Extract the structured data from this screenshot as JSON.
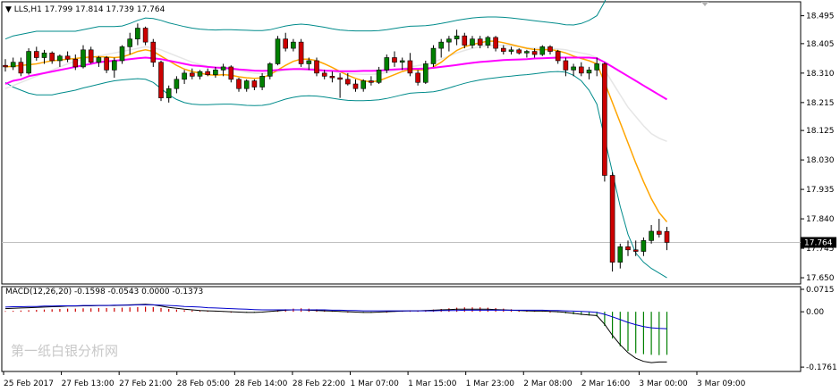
{
  "chart_data": {
    "type": "candlestick",
    "symbol": "LLS,H1",
    "ohlc_header": {
      "open": 17.799,
      "high": 17.814,
      "low": 17.739,
      "close": 17.764
    },
    "ohlc_text": "17.799 17.814 17.739 17.764",
    "price_axis": {
      "range": [
        17.63,
        18.54
      ],
      "ticks": [
        "18.495",
        "18.405",
        "18.310",
        "18.215",
        "18.125",
        "18.030",
        "17.935",
        "17.840",
        "17.745",
        "17.650"
      ],
      "current_price_label": "17.764",
      "current_price": 17.764
    },
    "time_axis": {
      "ticks": [
        "25 Feb 2017",
        "27 Feb 13:00",
        "27 Feb 21:00",
        "28 Feb 05:00",
        "28 Feb 14:00",
        "28 Feb 22:00",
        "1 Mar 07:00",
        "1 Mar 15:00",
        "1 Mar 23:00",
        "2 Mar 08:00",
        "2 Mar 16:00",
        "3 Mar 00:00",
        "3 Mar 09:00"
      ]
    },
    "candles": [
      [
        18.335,
        18.355,
        18.315,
        18.33
      ],
      [
        18.33,
        18.36,
        18.32,
        18.345
      ],
      [
        18.345,
        18.36,
        18.3,
        18.31
      ],
      [
        18.31,
        18.39,
        18.305,
        18.38
      ],
      [
        18.38,
        18.395,
        18.35,
        18.36
      ],
      [
        18.36,
        18.385,
        18.34,
        18.375
      ],
      [
        18.375,
        18.38,
        18.34,
        18.35
      ],
      [
        18.35,
        18.37,
        18.33,
        18.365
      ],
      [
        18.365,
        18.38,
        18.345,
        18.355
      ],
      [
        18.355,
        18.37,
        18.32,
        18.33
      ],
      [
        18.33,
        18.4,
        18.325,
        18.385
      ],
      [
        18.385,
        18.395,
        18.34,
        18.345
      ],
      [
        18.345,
        18.365,
        18.33,
        18.36
      ],
      [
        18.36,
        18.365,
        18.31,
        18.32
      ],
      [
        18.32,
        18.36,
        18.295,
        18.35
      ],
      [
        18.35,
        18.4,
        18.34,
        18.395
      ],
      [
        18.395,
        18.44,
        18.37,
        18.42
      ],
      [
        18.42,
        18.47,
        18.4,
        18.455
      ],
      [
        18.455,
        18.46,
        18.4,
        18.41
      ],
      [
        18.41,
        18.42,
        18.33,
        18.345
      ],
      [
        18.345,
        18.35,
        18.22,
        18.23
      ],
      [
        18.23,
        18.27,
        18.215,
        18.26
      ],
      [
        18.26,
        18.3,
        18.245,
        18.29
      ],
      [
        18.29,
        18.32,
        18.275,
        18.31
      ],
      [
        18.31,
        18.325,
        18.29,
        18.3
      ],
      [
        18.3,
        18.32,
        18.29,
        18.315
      ],
      [
        18.315,
        18.325,
        18.3,
        18.305
      ],
      [
        18.305,
        18.33,
        18.295,
        18.32
      ],
      [
        18.32,
        18.34,
        18.3,
        18.33
      ],
      [
        18.33,
        18.335,
        18.28,
        18.29
      ],
      [
        18.29,
        18.295,
        18.25,
        18.26
      ],
      [
        18.26,
        18.29,
        18.25,
        18.285
      ],
      [
        18.285,
        18.29,
        18.255,
        18.265
      ],
      [
        18.265,
        18.31,
        18.255,
        18.3
      ],
      [
        18.3,
        18.345,
        18.29,
        18.34
      ],
      [
        18.34,
        18.43,
        18.335,
        18.42
      ],
      [
        18.42,
        18.44,
        18.38,
        18.39
      ],
      [
        18.39,
        18.42,
        18.38,
        18.41
      ],
      [
        18.41,
        18.42,
        18.33,
        18.34
      ],
      [
        18.34,
        18.36,
        18.32,
        18.35
      ],
      [
        18.35,
        18.36,
        18.3,
        18.31
      ],
      [
        18.31,
        18.32,
        18.29,
        18.3
      ],
      [
        18.3,
        18.315,
        18.28,
        18.295
      ],
      [
        18.295,
        18.31,
        18.23,
        18.29
      ],
      [
        18.29,
        18.31,
        18.27,
        18.275
      ],
      [
        18.275,
        18.29,
        18.25,
        18.26
      ],
      [
        18.26,
        18.29,
        18.25,
        18.285
      ],
      [
        18.285,
        18.3,
        18.27,
        18.28
      ],
      [
        18.28,
        18.33,
        18.275,
        18.32
      ],
      [
        18.32,
        18.37,
        18.31,
        18.36
      ],
      [
        18.36,
        18.38,
        18.33,
        18.345
      ],
      [
        18.345,
        18.36,
        18.32,
        18.35
      ],
      [
        18.35,
        18.375,
        18.3,
        18.31
      ],
      [
        18.31,
        18.32,
        18.27,
        18.28
      ],
      [
        18.28,
        18.35,
        18.275,
        18.34
      ],
      [
        18.34,
        18.4,
        18.33,
        18.39
      ],
      [
        18.39,
        18.42,
        18.36,
        18.41
      ],
      [
        18.41,
        18.43,
        18.38,
        18.42
      ],
      [
        18.42,
        18.45,
        18.4,
        18.43
      ],
      [
        18.43,
        18.44,
        18.39,
        18.4
      ],
      [
        18.4,
        18.43,
        18.39,
        18.42
      ],
      [
        18.42,
        18.43,
        18.39,
        18.4
      ],
      [
        18.4,
        18.43,
        18.39,
        18.425
      ],
      [
        18.425,
        18.43,
        18.38,
        18.39
      ],
      [
        18.39,
        18.4,
        18.37,
        18.38
      ],
      [
        18.38,
        18.395,
        18.37,
        18.385
      ],
      [
        18.385,
        18.39,
        18.37,
        18.375
      ],
      [
        18.375,
        18.385,
        18.36,
        18.38
      ],
      [
        18.38,
        18.39,
        18.36,
        18.37
      ],
      [
        18.37,
        18.4,
        18.365,
        18.395
      ],
      [
        18.395,
        18.4,
        18.37,
        18.38
      ],
      [
        18.38,
        18.385,
        18.34,
        18.35
      ],
      [
        18.35,
        18.36,
        18.3,
        18.32
      ],
      [
        18.32,
        18.34,
        18.3,
        18.33
      ],
      [
        18.33,
        18.345,
        18.3,
        18.31
      ],
      [
        18.31,
        18.33,
        18.29,
        18.32
      ],
      [
        18.32,
        18.36,
        18.3,
        18.34
      ],
      [
        18.34,
        18.345,
        17.96,
        17.98
      ],
      [
        17.98,
        17.99,
        17.67,
        17.7
      ],
      [
        17.7,
        17.76,
        17.68,
        17.75
      ],
      [
        17.75,
        17.77,
        17.72,
        17.74
      ],
      [
        17.74,
        17.77,
        17.72,
        17.735
      ],
      [
        17.735,
        17.78,
        17.72,
        17.77
      ],
      [
        17.77,
        17.82,
        17.76,
        17.8
      ],
      [
        17.8,
        17.84,
        17.78,
        17.79
      ],
      [
        17.799,
        17.814,
        17.739,
        17.764
      ]
    ],
    "moving_averages": [
      {
        "color": "#ff00ff",
        "values": [
          18.275,
          18.285,
          18.29,
          18.3,
          18.305,
          18.31,
          18.315,
          18.32,
          18.325,
          18.33,
          18.335,
          18.34,
          18.345,
          18.348,
          18.35,
          18.352,
          18.355,
          18.358,
          18.36,
          18.358,
          18.355,
          18.35,
          18.345,
          18.34,
          18.335,
          18.333,
          18.33,
          18.328,
          18.327,
          18.325,
          18.322,
          18.32,
          18.318,
          18.317,
          18.318,
          18.32,
          18.322,
          18.323,
          18.323,
          18.322,
          18.32,
          18.318,
          18.317,
          18.316,
          18.316,
          18.316,
          18.317,
          18.317,
          18.318,
          18.32,
          18.322,
          18.323,
          18.324,
          18.324,
          18.325,
          18.327,
          18.33,
          18.333,
          18.336,
          18.34,
          18.343,
          18.346,
          18.348,
          18.35,
          18.352,
          18.353,
          18.354,
          18.355,
          18.357,
          18.358,
          18.359,
          18.36,
          18.36,
          18.36,
          18.36,
          18.36,
          18.358,
          18.345,
          18.33,
          18.315,
          18.3,
          18.285,
          18.27,
          18.255,
          18.24,
          18.225
        ]
      },
      {
        "color": "#ffa500",
        "values": [
          18.33,
          18.332,
          18.335,
          18.337,
          18.34,
          18.345,
          18.35,
          18.352,
          18.355,
          18.357,
          18.36,
          18.362,
          18.363,
          18.362,
          18.36,
          18.362,
          18.37,
          18.38,
          18.385,
          18.38,
          18.365,
          18.35,
          18.335,
          18.323,
          18.315,
          18.31,
          18.305,
          18.303,
          18.305,
          18.303,
          18.298,
          18.295,
          18.293,
          18.295,
          18.305,
          18.32,
          18.335,
          18.348,
          18.355,
          18.355,
          18.35,
          18.34,
          18.328,
          18.315,
          18.303,
          18.293,
          18.285,
          18.282,
          18.285,
          18.295,
          18.305,
          18.315,
          18.322,
          18.32,
          18.32,
          18.33,
          18.345,
          18.365,
          18.383,
          18.395,
          18.402,
          18.408,
          18.413,
          18.413,
          18.408,
          18.402,
          18.396,
          18.39,
          18.386,
          18.385,
          18.386,
          18.382,
          18.375,
          18.365,
          18.357,
          18.35,
          18.34,
          18.28,
          18.215,
          18.15,
          18.085,
          18.02,
          17.96,
          17.905,
          17.86,
          17.83
        ]
      },
      {
        "color": "#ffffff",
        "values": [
          18.26,
          18.27,
          18.28,
          18.29,
          18.3,
          18.31,
          18.32,
          18.33,
          18.34,
          18.348,
          18.355,
          18.36,
          18.365,
          18.37,
          18.375,
          18.38,
          18.385,
          18.39,
          18.395,
          18.392,
          18.385,
          18.375,
          18.365,
          18.355,
          18.345,
          18.338,
          18.332,
          18.328,
          18.325,
          18.322,
          18.318,
          18.314,
          18.31,
          18.308,
          18.31,
          18.315,
          18.32,
          18.324,
          18.326,
          18.326,
          18.324,
          18.32,
          18.316,
          18.312,
          18.309,
          18.307,
          18.306,
          18.306,
          18.308,
          18.312,
          18.318,
          18.324,
          18.33,
          18.334,
          18.338,
          18.345,
          18.355,
          18.365,
          18.375,
          18.383,
          18.39,
          18.395,
          18.398,
          18.4,
          18.4,
          18.398,
          18.395,
          18.392,
          18.39,
          18.39,
          18.39,
          18.388,
          18.385,
          18.38,
          18.375,
          18.37,
          18.36,
          18.32,
          18.28,
          18.24,
          18.2,
          18.17,
          18.14,
          18.115,
          18.1,
          18.09
        ]
      }
    ],
    "bollinger": {
      "color": "#008b8b",
      "upper": [
        18.42,
        18.43,
        18.435,
        18.44,
        18.445,
        18.445,
        18.445,
        18.445,
        18.445,
        18.445,
        18.45,
        18.455,
        18.46,
        18.46,
        18.46,
        18.462,
        18.47,
        18.48,
        18.488,
        18.486,
        18.48,
        18.472,
        18.466,
        18.46,
        18.455,
        18.452,
        18.45,
        18.449,
        18.45,
        18.45,
        18.449,
        18.448,
        18.447,
        18.447,
        18.45,
        18.456,
        18.462,
        18.466,
        18.468,
        18.466,
        18.462,
        18.458,
        18.453,
        18.449,
        18.447,
        18.446,
        18.446,
        18.446,
        18.447,
        18.45,
        18.454,
        18.458,
        18.461,
        18.462,
        18.463,
        18.466,
        18.47,
        18.475,
        18.48,
        18.484,
        18.488,
        18.49,
        18.491,
        18.491,
        18.49,
        18.488,
        18.485,
        18.482,
        18.479,
        18.476,
        18.473,
        18.47,
        18.466,
        18.465,
        18.47,
        18.48,
        18.495,
        18.54,
        18.6,
        18.66,
        18.72,
        18.77,
        18.81,
        18.84,
        18.86,
        18.87
      ],
      "lower": [
        18.28,
        18.265,
        18.255,
        18.245,
        18.24,
        18.24,
        18.24,
        18.245,
        18.25,
        18.255,
        18.262,
        18.268,
        18.274,
        18.28,
        18.285,
        18.288,
        18.29,
        18.292,
        18.29,
        18.28,
        18.26,
        18.24,
        18.225,
        18.215,
        18.21,
        18.208,
        18.208,
        18.209,
        18.21,
        18.21,
        18.208,
        18.206,
        18.205,
        18.206,
        18.21,
        18.218,
        18.226,
        18.232,
        18.236,
        18.237,
        18.236,
        18.233,
        18.229,
        18.225,
        18.222,
        18.221,
        18.221,
        18.222,
        18.224,
        18.228,
        18.234,
        18.24,
        18.245,
        18.247,
        18.248,
        18.25,
        18.255,
        18.262,
        18.27,
        18.277,
        18.283,
        18.288,
        18.292,
        18.295,
        18.298,
        18.3,
        18.303,
        18.305,
        18.308,
        18.311,
        18.314,
        18.315,
        18.313,
        18.303,
        18.285,
        18.255,
        18.21,
        18.1,
        17.99,
        17.88,
        17.79,
        17.73,
        17.7,
        17.68,
        17.665,
        17.65
      ]
    },
    "macd": {
      "label": "MACD(12,26,20) -0.1598 -0.0543 0.0000 -0.1373",
      "range": [
        -0.19,
        0.08
      ],
      "ticks": [
        "0.0715",
        "0.00",
        "-0.1761"
      ],
      "histogram": [
        0.002,
        0.003,
        0.004,
        0.005,
        0.006,
        0.007,
        0.008,
        0.009,
        0.01,
        0.01,
        0.011,
        0.011,
        0.012,
        0.012,
        0.012,
        0.013,
        0.014,
        0.015,
        0.016,
        0.015,
        0.012,
        0.009,
        0.007,
        0.005,
        0.004,
        0.003,
        0.002,
        0.001,
        0.001,
        0.0,
        -0.001,
        -0.002,
        -0.002,
        -0.001,
        0.001,
        0.004,
        0.008,
        0.01,
        0.011,
        0.01,
        0.008,
        0.006,
        0.004,
        0.002,
        0.0,
        -0.002,
        -0.003,
        -0.003,
        -0.002,
        0.0,
        0.002,
        0.003,
        0.004,
        0.004,
        0.005,
        0.007,
        0.009,
        0.011,
        0.013,
        0.014,
        0.014,
        0.014,
        0.013,
        0.012,
        0.01,
        0.008,
        0.006,
        0.004,
        0.002,
        0.001,
        0.0,
        -0.002,
        -0.005,
        -0.008,
        -0.01,
        -0.012,
        -0.015,
        -0.045,
        -0.085,
        -0.11,
        -0.125,
        -0.132,
        -0.135,
        -0.137,
        -0.138,
        -0.137
      ],
      "macd_line": [
        0.01,
        0.011,
        0.012,
        0.013,
        0.014,
        0.015,
        0.016,
        0.017,
        0.018,
        0.018,
        0.019,
        0.019,
        0.02,
        0.02,
        0.02,
        0.021,
        0.022,
        0.023,
        0.024,
        0.022,
        0.018,
        0.014,
        0.011,
        0.008,
        0.006,
        0.004,
        0.003,
        0.002,
        0.001,
        0.0,
        -0.001,
        -0.002,
        -0.002,
        -0.001,
        0.001,
        0.003,
        0.005,
        0.006,
        0.006,
        0.005,
        0.004,
        0.003,
        0.002,
        0.001,
        0.0,
        -0.001,
        -0.002,
        -0.002,
        -0.001,
        0.0,
        0.001,
        0.002,
        0.003,
        0.003,
        0.004,
        0.005,
        0.006,
        0.007,
        0.008,
        0.008,
        0.008,
        0.008,
        0.008,
        0.007,
        0.006,
        0.005,
        0.004,
        0.003,
        0.002,
        0.002,
        0.001,
        0.0,
        -0.002,
        -0.005,
        -0.008,
        -0.01,
        -0.012,
        -0.04,
        -0.075,
        -0.105,
        -0.13,
        -0.148,
        -0.158,
        -0.162,
        -0.16,
        -0.16
      ],
      "signal_line": [
        0.015,
        0.016,
        0.016,
        0.017,
        0.017,
        0.018,
        0.018,
        0.019,
        0.019,
        0.019,
        0.02,
        0.02,
        0.02,
        0.02,
        0.021,
        0.021,
        0.021,
        0.022,
        0.022,
        0.022,
        0.021,
        0.02,
        0.019,
        0.017,
        0.016,
        0.015,
        0.013,
        0.012,
        0.011,
        0.01,
        0.009,
        0.008,
        0.007,
        0.006,
        0.006,
        0.006,
        0.006,
        0.006,
        0.006,
        0.006,
        0.006,
        0.006,
        0.005,
        0.005,
        0.004,
        0.004,
        0.003,
        0.003,
        0.003,
        0.003,
        0.003,
        0.003,
        0.003,
        0.003,
        0.003,
        0.003,
        0.004,
        0.004,
        0.004,
        0.005,
        0.005,
        0.005,
        0.005,
        0.005,
        0.005,
        0.005,
        0.005,
        0.005,
        0.005,
        0.005,
        0.004,
        0.004,
        0.003,
        0.002,
        0.001,
        0.0,
        -0.002,
        -0.008,
        -0.016,
        -0.025,
        -0.034,
        -0.041,
        -0.047,
        -0.051,
        -0.053,
        -0.054
      ]
    },
    "colors": {
      "up_body": "#008000",
      "down_body": "#cc0000",
      "wick": "#000000",
      "grid": "#c0c0c0",
      "macd_hist_neg": "#008000",
      "macd_hist_pos": "#cc0000",
      "macd_line": "#000000",
      "signal_line": "#0000cc"
    },
    "watermark": "第一纸白银分析网"
  }
}
